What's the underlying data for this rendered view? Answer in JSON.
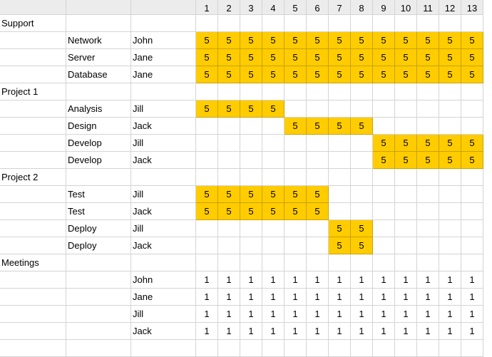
{
  "theme": {
    "fill_color": "#ffcc00",
    "header_bg": "#ececec",
    "grid_color": "#d4d4d4"
  },
  "header": {
    "days": [
      "1",
      "2",
      "3",
      "4",
      "5",
      "6",
      "7",
      "8",
      "9",
      "10",
      "11",
      "12",
      "13"
    ]
  },
  "rows": [
    {
      "a": "Support",
      "b": "",
      "c": "",
      "cells": [
        "",
        "",
        "",
        "",
        "",
        "",
        "",
        "",
        "",
        "",
        "",
        "",
        ""
      ]
    },
    {
      "a": "",
      "b": "Network",
      "c": "John",
      "cells": [
        "5",
        "5",
        "5",
        "5",
        "5",
        "5",
        "5",
        "5",
        "5",
        "5",
        "5",
        "5",
        "5"
      ]
    },
    {
      "a": "",
      "b": "Server",
      "c": "Jane",
      "cells": [
        "5",
        "5",
        "5",
        "5",
        "5",
        "5",
        "5",
        "5",
        "5",
        "5",
        "5",
        "5",
        "5"
      ]
    },
    {
      "a": "",
      "b": "Database",
      "c": "Jane",
      "cells": [
        "5",
        "5",
        "5",
        "5",
        "5",
        "5",
        "5",
        "5",
        "5",
        "5",
        "5",
        "5",
        "5"
      ]
    },
    {
      "a": "Project 1",
      "b": "",
      "c": "",
      "cells": [
        "",
        "",
        "",
        "",
        "",
        "",
        "",
        "",
        "",
        "",
        "",
        "",
        ""
      ]
    },
    {
      "a": "",
      "b": "Analysis",
      "c": "Jill",
      "cells": [
        "5",
        "5",
        "5",
        "5",
        "",
        "",
        "",
        "",
        "",
        "",
        "",
        "",
        ""
      ]
    },
    {
      "a": "",
      "b": "Design",
      "c": "Jack",
      "cells": [
        "",
        "",
        "",
        "",
        "5",
        "5",
        "5",
        "5",
        "",
        "",
        "",
        "",
        ""
      ]
    },
    {
      "a": "",
      "b": "Develop",
      "c": "Jill",
      "cells": [
        "",
        "",
        "",
        "",
        "",
        "",
        "",
        "",
        "5",
        "5",
        "5",
        "5",
        "5"
      ]
    },
    {
      "a": "",
      "b": "Develop",
      "c": "Jack",
      "cells": [
        "",
        "",
        "",
        "",
        "",
        "",
        "",
        "",
        "5",
        "5",
        "5",
        "5",
        "5"
      ]
    },
    {
      "a": "Project 2",
      "b": "",
      "c": "",
      "cells": [
        "",
        "",
        "",
        "",
        "",
        "",
        "",
        "",
        "",
        "",
        "",
        "",
        ""
      ]
    },
    {
      "a": "",
      "b": "Test",
      "c": "Jill",
      "cells": [
        "5",
        "5",
        "5",
        "5",
        "5",
        "5",
        "",
        "",
        "",
        "",
        "",
        "",
        ""
      ]
    },
    {
      "a": "",
      "b": "Test",
      "c": "Jack",
      "cells": [
        "5",
        "5",
        "5",
        "5",
        "5",
        "5",
        "",
        "",
        "",
        "",
        "",
        "",
        ""
      ]
    },
    {
      "a": "",
      "b": "Deploy",
      "c": "Jill",
      "cells": [
        "",
        "",
        "",
        "",
        "",
        "",
        "5",
        "5",
        "",
        "",
        "",
        "",
        ""
      ]
    },
    {
      "a": "",
      "b": "Deploy",
      "c": "Jack",
      "cells": [
        "",
        "",
        "",
        "",
        "",
        "",
        "5",
        "5",
        "",
        "",
        "",
        "",
        ""
      ]
    },
    {
      "a": "Meetings",
      "b": "",
      "c": "",
      "cells": [
        "",
        "",
        "",
        "",
        "",
        "",
        "",
        "",
        "",
        "",
        "",
        "",
        ""
      ]
    },
    {
      "a": "",
      "b": "",
      "c": "John",
      "cells": [
        "1",
        "1",
        "1",
        "1",
        "1",
        "1",
        "1",
        "1",
        "1",
        "1",
        "1",
        "1",
        "1"
      ]
    },
    {
      "a": "",
      "b": "",
      "c": "Jane",
      "cells": [
        "1",
        "1",
        "1",
        "1",
        "1",
        "1",
        "1",
        "1",
        "1",
        "1",
        "1",
        "1",
        "1"
      ]
    },
    {
      "a": "",
      "b": "",
      "c": "Jill",
      "cells": [
        "1",
        "1",
        "1",
        "1",
        "1",
        "1",
        "1",
        "1",
        "1",
        "1",
        "1",
        "1",
        "1"
      ]
    },
    {
      "a": "",
      "b": "",
      "c": "Jack",
      "cells": [
        "1",
        "1",
        "1",
        "1",
        "1",
        "1",
        "1",
        "1",
        "1",
        "1",
        "1",
        "1",
        "1"
      ]
    },
    {
      "a": "",
      "b": "",
      "c": "",
      "cells": [
        "",
        "",
        "",
        "",
        "",
        "",
        "",
        "",
        "",
        "",
        "",
        "",
        ""
      ]
    }
  ]
}
